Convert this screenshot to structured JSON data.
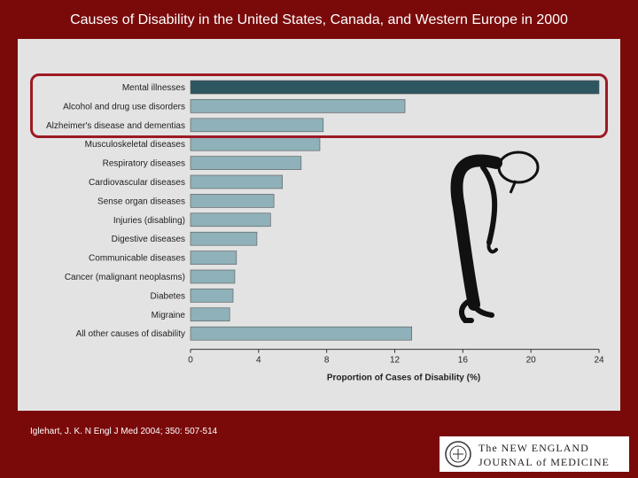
{
  "slide": {
    "title": "Causes of Disability in the United States, Canada, and Western Europe in 2000",
    "citation": "Iglehart, J. K. N Engl J Med 2004; 350: 507-514"
  },
  "logo": {
    "line1": "The NEW ENGLAND",
    "line2": "JOURNAL of MEDICINE"
  },
  "colors": {
    "background": "#7a0a0a",
    "panel": "#e3e3e3",
    "bar_highlight": "#2e5661",
    "bar": "#8fb1b9",
    "highlight_border": "#9c1a24"
  },
  "chart_data": {
    "type": "bar",
    "orientation": "horizontal",
    "title": "",
    "xlabel": "Proportion of Cases of Disability (%)",
    "ylabel": "",
    "xlim": [
      0,
      24
    ],
    "xticks": [
      0,
      4,
      8,
      12,
      16,
      20,
      24
    ],
    "grid": false,
    "categories": [
      "Mental illnesses",
      "Alcohol and drug use disorders",
      "Alzheimer's disease and dementias",
      "Musculoskeletal diseases",
      "Respiratory diseases",
      "Cardiovascular diseases",
      "Sense organ diseases",
      "Injuries (disabling)",
      "Digestive diseases",
      "Communicable diseases",
      "Cancer (malignant neoplasms)",
      "Diabetes",
      "Migraine",
      "All other causes of disability"
    ],
    "values": [
      24.0,
      12.6,
      7.8,
      7.6,
      6.5,
      5.4,
      4.9,
      4.7,
      3.9,
      2.7,
      2.6,
      2.5,
      2.3,
      13.0
    ],
    "highlighted_categories": [
      "Mental illnesses",
      "Alcohol and drug use disorders",
      "Alzheimer's disease and dementias"
    ]
  }
}
